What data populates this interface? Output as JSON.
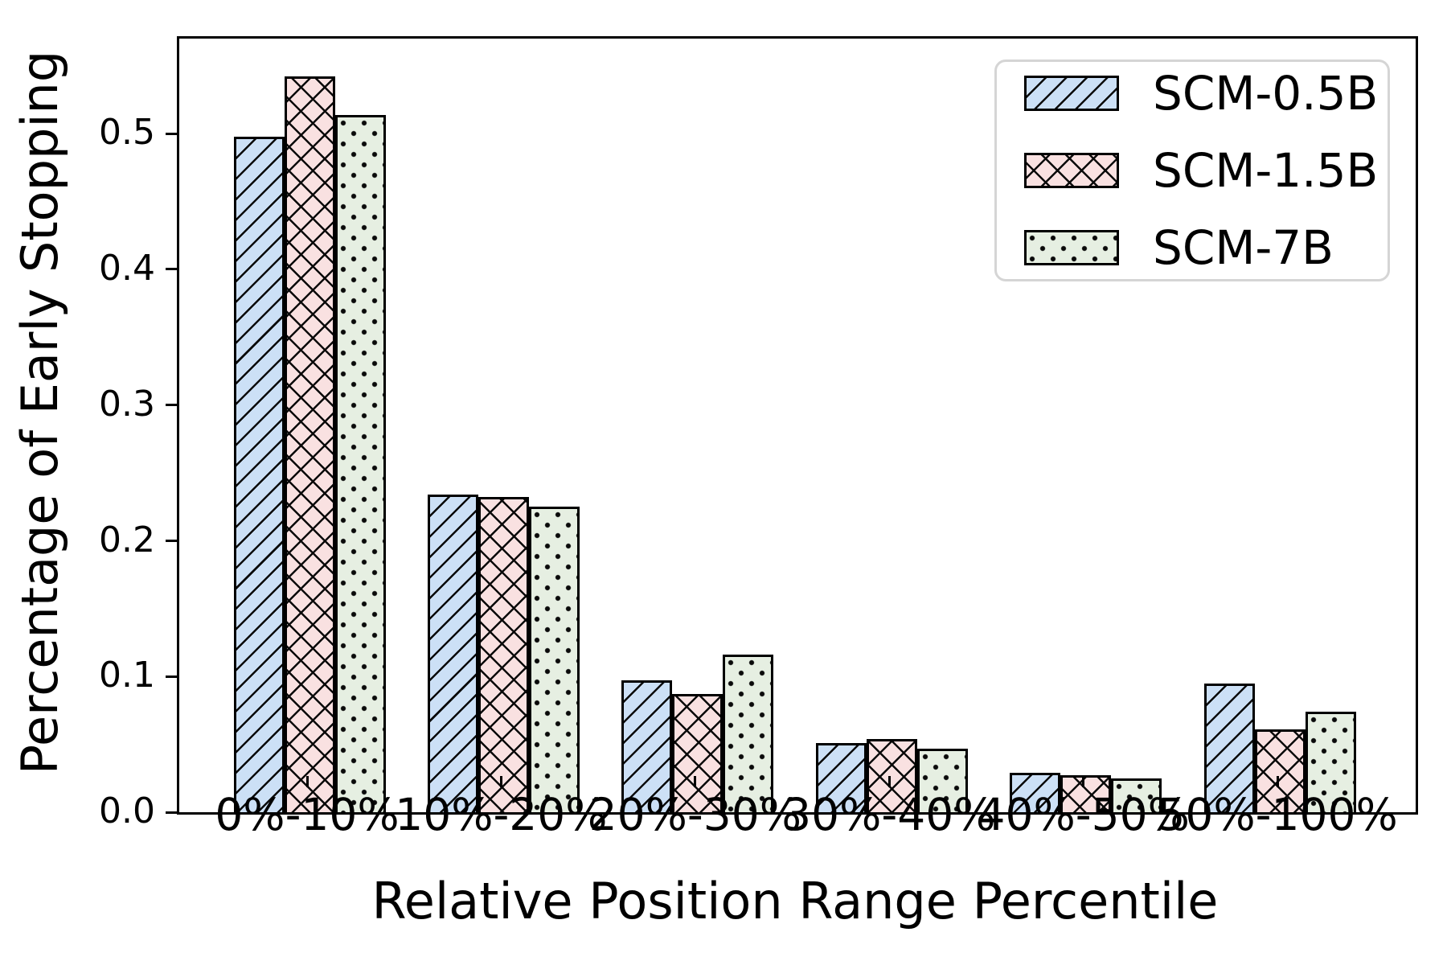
{
  "chart_data": {
    "type": "bar",
    "title": "",
    "xlabel": "Relative Position Range Percentile",
    "ylabel": "Percentage of Early Stopping",
    "categories": [
      "0%-10%",
      "10%-20%",
      "20%-30%",
      "30%-40%",
      "40%-50%",
      "50%-100%"
    ],
    "series": [
      {
        "name": "SCM-0.5B",
        "hatch": "diagonal",
        "fill_color": "#cce0f6",
        "values": [
          0.498,
          0.234,
          0.097,
          0.051,
          0.029,
          0.095
        ]
      },
      {
        "name": "SCM-1.5B",
        "hatch": "cross",
        "fill_color": "#f9e1e1",
        "values": [
          0.542,
          0.232,
          0.087,
          0.054,
          0.027,
          0.061
        ]
      },
      {
        "name": "SCM-7B",
        "hatch": "dot",
        "fill_color": "#e6efe2",
        "values": [
          0.514,
          0.225,
          0.116,
          0.047,
          0.025,
          0.074
        ]
      }
    ],
    "yticks": [
      "0.0",
      "0.1",
      "0.2",
      "0.3",
      "0.4",
      "0.5"
    ],
    "ytick_values": [
      0.0,
      0.1,
      0.2,
      0.3,
      0.4,
      0.5
    ],
    "ylim": [
      0,
      0.57
    ],
    "grid": false,
    "legend_position": "upper right",
    "edge_color": "#000000",
    "hatch_color": "#0a0a0a"
  }
}
